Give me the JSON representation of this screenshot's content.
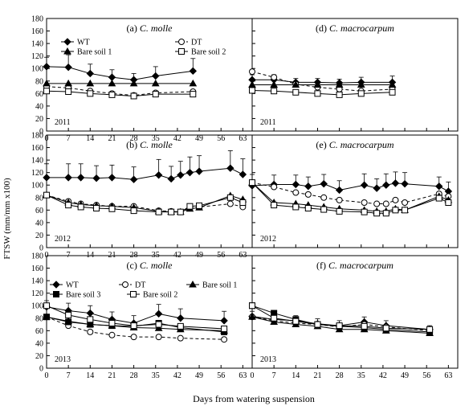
{
  "figure": {
    "ylabel": "FTSW (mm/mm x100)",
    "xlabel": "Days from watering suspension"
  },
  "chart_data": [
    {
      "id": "a",
      "type": "line",
      "title": "(a) C. molle",
      "title_prefix": "(a) ",
      "title_species": "C. molle",
      "year": "2011",
      "xlim": [
        0,
        66
      ],
      "ylim": [
        0,
        180
      ],
      "xticks": [
        0,
        7,
        14,
        21,
        28,
        35,
        42,
        49,
        56,
        63
      ],
      "yticks": [
        0,
        20,
        40,
        60,
        80,
        100,
        120,
        140,
        160,
        180
      ],
      "legend": [
        {
          "name": "WT",
          "series": "WT"
        },
        {
          "name": "DT",
          "series": "DT"
        },
        {
          "name": "Bare soil 1",
          "series": "Bare soil 1"
        },
        {
          "name": "Bare soil 2",
          "series": "Bare soil 2"
        }
      ],
      "series": [
        {
          "name": "WT",
          "x": [
            0,
            7,
            14,
            21,
            28,
            35,
            47
          ],
          "y": [
            103,
            102,
            92,
            86,
            82,
            88,
            96
          ],
          "err": [
            15,
            20,
            15,
            12,
            10,
            15,
            20
          ]
        },
        {
          "name": "DT",
          "x": [
            0,
            7,
            14,
            21,
            28,
            35,
            47
          ],
          "y": [
            71,
            69,
            64,
            60,
            57,
            61,
            63
          ]
        },
        {
          "name": "Bare soil 1",
          "x": [
            0,
            7,
            14,
            21,
            28,
            35,
            47
          ],
          "y": [
            76,
            76,
            76,
            76,
            76,
            76,
            76
          ]
        },
        {
          "name": "Bare soil 2",
          "x": [
            0,
            7,
            14,
            21,
            28,
            35,
            47
          ],
          "y": [
            64,
            63,
            60,
            58,
            56,
            59,
            59
          ]
        }
      ]
    },
    {
      "id": "d",
      "type": "line",
      "title": "(d) C. macrocarpum",
      "title_prefix": "(d) ",
      "title_species": "C. macrocarpum",
      "year": "2011",
      "xlim": [
        0,
        66
      ],
      "ylim": [
        0,
        180
      ],
      "xticks": [
        0,
        7,
        14,
        21,
        28,
        35,
        42,
        49,
        56,
        63
      ],
      "yticks": [
        0,
        20,
        40,
        60,
        80,
        100,
        120,
        140,
        160,
        180
      ],
      "legend": [],
      "series": [
        {
          "name": "WT",
          "x": [
            0,
            7,
            14,
            21,
            28,
            35,
            45
          ],
          "y": [
            82,
            82,
            78,
            78,
            77,
            78,
            78
          ],
          "err": [
            8,
            8,
            6,
            6,
            6,
            8,
            10
          ]
        },
        {
          "name": "DT",
          "x": [
            0,
            7,
            14,
            21,
            28,
            35,
            45
          ],
          "y": [
            95,
            86,
            75,
            70,
            67,
            64,
            67
          ]
        },
        {
          "name": "Bare soil 1",
          "x": [
            0,
            7,
            14,
            21,
            28,
            35,
            45
          ],
          "y": [
            74,
            74,
            74,
            74,
            74,
            74,
            74
          ]
        },
        {
          "name": "Bare soil 2",
          "x": [
            0,
            7,
            14,
            21,
            28,
            35,
            45
          ],
          "y": [
            65,
            64,
            62,
            60,
            58,
            60,
            62
          ]
        }
      ]
    },
    {
      "id": "b",
      "type": "line",
      "title": "(b) C. molle",
      "title_prefix": "(b) ",
      "title_species": "C. molle",
      "year": "2012",
      "xlim": [
        0,
        66
      ],
      "ylim": [
        0,
        180
      ],
      "xticks": [
        0,
        7,
        14,
        21,
        28,
        35,
        42,
        49,
        56,
        63
      ],
      "yticks": [
        0,
        20,
        40,
        60,
        80,
        100,
        120,
        140,
        160,
        180
      ],
      "legend": [],
      "series": [
        {
          "name": "WT",
          "x": [
            0,
            7,
            11,
            16,
            21,
            28,
            36,
            40,
            43,
            46,
            49,
            59,
            63
          ],
          "y": [
            112,
            112,
            112,
            111,
            112,
            109,
            116,
            110,
            116,
            120,
            122,
            127,
            117
          ],
          "err": [
            22,
            22,
            22,
            20,
            20,
            20,
            25,
            20,
            22,
            25,
            25,
            28,
            25
          ]
        },
        {
          "name": "DT",
          "x": [
            0,
            7,
            11,
            16,
            21,
            28,
            36,
            40,
            43,
            46,
            49,
            59,
            63
          ],
          "y": [
            84,
            74,
            70,
            68,
            66,
            66,
            59,
            58,
            57,
            64,
            65,
            70,
            65
          ]
        },
        {
          "name": "Bare soil 1",
          "x": [
            0,
            7,
            11,
            16,
            21,
            28,
            36,
            40,
            43,
            46,
            49,
            59,
            63
          ],
          "y": [
            84,
            72,
            69,
            67,
            66,
            64,
            58,
            57,
            57,
            62,
            64,
            83,
            77
          ]
        },
        {
          "name": "Bare soil 2",
          "x": [
            0,
            7,
            11,
            16,
            21,
            28,
            36,
            40,
            43,
            46,
            49,
            59,
            63
          ],
          "y": [
            84,
            68,
            65,
            63,
            62,
            59,
            57,
            57,
            57,
            66,
            67,
            80,
            72
          ]
        }
      ]
    },
    {
      "id": "e",
      "type": "line",
      "title": "(e) C. macrocarpum",
      "title_prefix": "(e) ",
      "title_species": "C. macrocarpum",
      "year": "2012",
      "xlim": [
        0,
        66
      ],
      "ylim": [
        0,
        180
      ],
      "xticks": [
        0,
        7,
        14,
        21,
        28,
        35,
        42,
        49,
        56,
        63
      ],
      "yticks": [
        0,
        20,
        40,
        60,
        80,
        100,
        120,
        140,
        160,
        180
      ],
      "legend": [],
      "series": [
        {
          "name": "WT",
          "x": [
            0,
            7,
            14,
            18,
            23,
            28,
            36,
            40,
            43,
            46,
            49,
            60,
            63
          ],
          "y": [
            99,
            101,
            101,
            98,
            102,
            92,
            100,
            95,
            100,
            103,
            102,
            98,
            90
          ],
          "err": [
            18,
            15,
            15,
            15,
            15,
            15,
            18,
            15,
            18,
            18,
            18,
            15,
            15
          ]
        },
        {
          "name": "DT",
          "x": [
            0,
            7,
            14,
            18,
            23,
            28,
            36,
            40,
            43,
            46,
            49,
            60,
            63
          ],
          "y": [
            104,
            97,
            88,
            85,
            80,
            76,
            72,
            70,
            70,
            76,
            72,
            86,
            82
          ]
        },
        {
          "name": "Bare soil 1",
          "x": [
            0,
            7,
            14,
            18,
            23,
            28,
            36,
            40,
            43,
            46,
            49,
            60,
            63
          ],
          "y": [
            104,
            72,
            70,
            68,
            65,
            62,
            60,
            58,
            58,
            62,
            60,
            82,
            76
          ]
        },
        {
          "name": "Bare soil 2",
          "x": [
            0,
            7,
            14,
            18,
            23,
            28,
            36,
            40,
            43,
            46,
            49,
            60,
            63
          ],
          "y": [
            104,
            68,
            65,
            63,
            61,
            58,
            57,
            55,
            55,
            60,
            60,
            79,
            72
          ]
        }
      ]
    },
    {
      "id": "c",
      "type": "line",
      "title": "(c) C. molle",
      "title_prefix": "(c) ",
      "title_species": "C. molle",
      "year": "2013",
      "xlim": [
        0,
        66
      ],
      "ylim": [
        0,
        180
      ],
      "xticks": [
        0,
        7,
        14,
        21,
        28,
        35,
        42,
        49,
        56,
        63
      ],
      "yticks": [
        0,
        20,
        40,
        60,
        80,
        100,
        120,
        140,
        160,
        180
      ],
      "legend": [
        {
          "name": "WT",
          "series": "WT"
        },
        {
          "name": "DT",
          "series": "DT"
        },
        {
          "name": "Bare soil 1",
          "series": "Bare soil 1"
        },
        {
          "name": "Bare soil 3",
          "series": "Bare soil 3"
        },
        {
          "name": "Bare soil 2",
          "series": "Bare soil 2"
        }
      ],
      "series": [
        {
          "name": "WT",
          "x": [
            0,
            7,
            14,
            21,
            28,
            36,
            43,
            57
          ],
          "y": [
            98,
            92,
            88,
            78,
            72,
            87,
            80,
            76
          ],
          "err": [
            10,
            12,
            12,
            12,
            12,
            15,
            15,
            15
          ]
        },
        {
          "name": "DT",
          "x": [
            0,
            7,
            14,
            21,
            28,
            36,
            43,
            57
          ],
          "y": [
            82,
            68,
            58,
            53,
            50,
            50,
            48,
            46
          ]
        },
        {
          "name": "Bare soil 1",
          "x": [
            0,
            7,
            14,
            21,
            28,
            36,
            43,
            57
          ],
          "y": [
            82,
            75,
            70,
            68,
            65,
            64,
            62,
            60
          ]
        },
        {
          "name": "Bare soil 3",
          "x": [
            0,
            7,
            14,
            21,
            28,
            36,
            43,
            57
          ],
          "y": [
            82,
            74,
            70,
            68,
            67,
            72,
            65,
            58
          ]
        },
        {
          "name": "Bare soil 2",
          "x": [
            0,
            7,
            14,
            21,
            28,
            36,
            43,
            57
          ],
          "y": [
            100,
            85,
            78,
            72,
            68,
            70,
            67,
            63
          ]
        }
      ]
    },
    {
      "id": "f",
      "type": "line",
      "title": "(f) C. macrocarpum",
      "title_prefix": "(f) ",
      "title_species": "C. macrocarpum",
      "year": "2013",
      "xlim": [
        0,
        66
      ],
      "ylim": [
        0,
        180
      ],
      "xticks": [
        0,
        7,
        14,
        21,
        28,
        35,
        42,
        49,
        56,
        63
      ],
      "yticks": [
        0,
        20,
        40,
        60,
        80,
        100,
        120,
        140,
        160,
        180
      ],
      "legend": [],
      "series": [
        {
          "name": "WT",
          "x": [
            0,
            7,
            14,
            21,
            28,
            36,
            43,
            57
          ],
          "y": [
            83,
            78,
            76,
            71,
            68,
            74,
            68,
            62
          ],
          "err": [
            8,
            8,
            8,
            8,
            8,
            8,
            8,
            6
          ]
        },
        {
          "name": "DT",
          "x": [
            0,
            7,
            14,
            21,
            28,
            36,
            43,
            57
          ],
          "y": [
            82,
            76,
            72,
            70,
            66,
            70,
            66,
            60
          ]
        },
        {
          "name": "Bare soil 1",
          "x": [
            0,
            7,
            14,
            21,
            28,
            36,
            43,
            57
          ],
          "y": [
            82,
            74,
            70,
            67,
            62,
            62,
            60,
            56
          ]
        },
        {
          "name": "Bare soil 3",
          "x": [
            0,
            7,
            14,
            21,
            28,
            36,
            43,
            57
          ],
          "y": [
            100,
            88,
            78,
            70,
            67,
            65,
            62,
            58
          ]
        },
        {
          "name": "Bare soil 2",
          "x": [
            0,
            7,
            14,
            21,
            28,
            36,
            43,
            57
          ],
          "y": [
            100,
            80,
            75,
            70,
            68,
            67,
            64,
            62
          ]
        }
      ]
    }
  ]
}
